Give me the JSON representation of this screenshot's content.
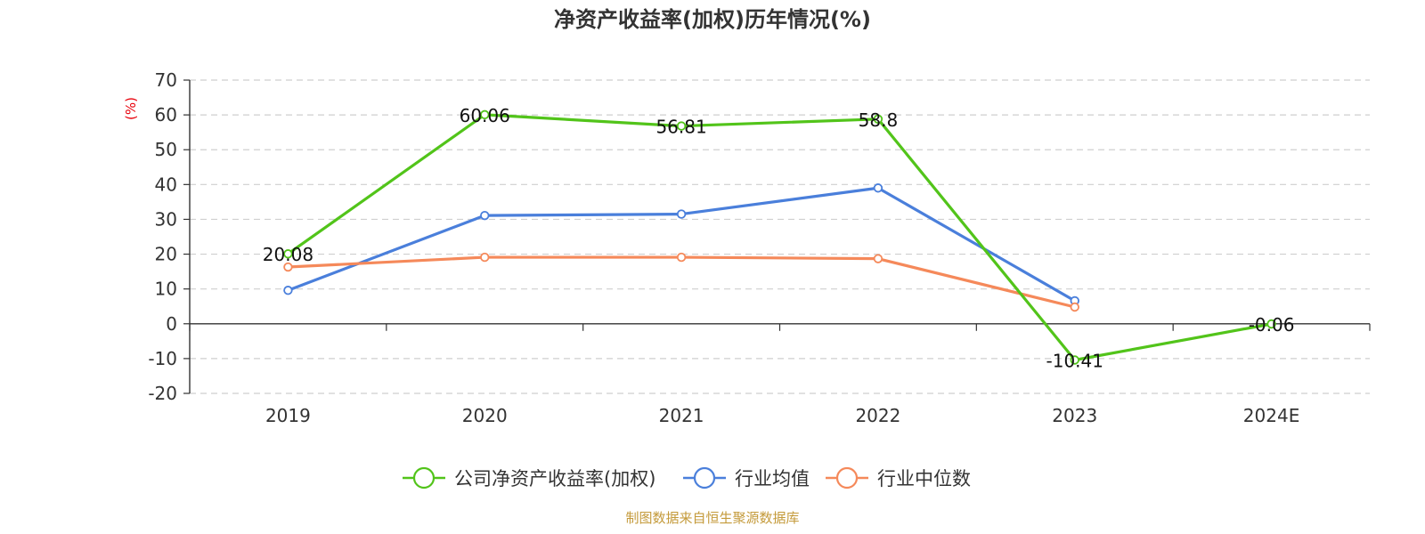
{
  "chart_data": {
    "type": "line",
    "title": "净资产收益率(加权)历年情况(%)",
    "ylabel": "(%)",
    "xlabel": "",
    "categories": [
      "2019",
      "2020",
      "2021",
      "2022",
      "2023",
      "2024E"
    ],
    "ylim": [
      -20,
      70
    ],
    "yticks": [
      -20,
      -10,
      0,
      10,
      20,
      30,
      40,
      50,
      60,
      70
    ],
    "grid": true,
    "legend_position": "bottom",
    "series": [
      {
        "name": "公司净资产收益率(加权)",
        "color": "#52c41a",
        "values": [
          20.08,
          60.06,
          56.81,
          58.8,
          -10.41,
          -0.06
        ],
        "labels": [
          "20.08",
          "60.06",
          "56.81",
          "58.8",
          "-10.41",
          "-0.06"
        ]
      },
      {
        "name": "行业均值",
        "color": "#4a7fdb",
        "values": [
          9.6,
          31.1,
          31.5,
          39.0,
          6.6,
          null
        ]
      },
      {
        "name": "行业中位数",
        "color": "#f5895a",
        "values": [
          16.3,
          19.1,
          19.1,
          18.7,
          4.8,
          null
        ]
      }
    ],
    "source": "制图数据来自恒生聚源数据库"
  }
}
